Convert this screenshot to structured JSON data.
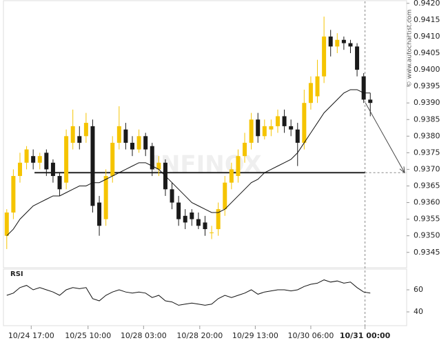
{
  "chart_data": {
    "type": "candlestick",
    "watermark": "INFINOX",
    "credit": "© www.autochartist.com",
    "up_color": "#f5c400",
    "down_color": "#1a1a1a",
    "ylim": [
      0.9341,
      0.9421
    ],
    "yticks": [
      {
        "value": 0.9345,
        "label": "0.9345"
      },
      {
        "value": 0.935,
        "label": "0.9350"
      },
      {
        "value": 0.9355,
        "label": "0.9355"
      },
      {
        "value": 0.936,
        "label": "0.9360"
      },
      {
        "value": 0.9365,
        "label": "0.9365"
      },
      {
        "value": 0.937,
        "label": "0.9370"
      },
      {
        "value": 0.9375,
        "label": "0.9375"
      },
      {
        "value": 0.938,
        "label": "0.9380"
      },
      {
        "value": 0.9385,
        "label": "0.9385"
      },
      {
        "value": 0.939,
        "label": "0.9390"
      },
      {
        "value": 0.9395,
        "label": "0.9395"
      },
      {
        "value": 0.94,
        "label": "0.9400"
      },
      {
        "value": 0.9405,
        "label": "0.9405"
      },
      {
        "value": 0.941,
        "label": "0.9410"
      },
      {
        "value": 0.9415,
        "label": "0.9415"
      },
      {
        "value": 0.942,
        "label": "0.9420"
      }
    ],
    "xlim": [
      -0.5,
      60.5
    ],
    "xticks": [
      {
        "value": 3.7,
        "label": "10/24 17:00"
      },
      {
        "value": 12.3,
        "label": "10/25 10:00"
      },
      {
        "value": 20.7,
        "label": "10/28 03:00"
      },
      {
        "value": 29.2,
        "label": "10/28 20:00"
      },
      {
        "value": 37.6,
        "label": "10/29 13:00"
      },
      {
        "value": 46,
        "label": "10/30 06:00"
      },
      {
        "value": 54.2,
        "label": "10/31 00:00"
      }
    ],
    "open": [
      0.935,
      0.9357,
      0.9368,
      0.9372,
      0.9374,
      0.9372,
      0.9375,
      0.9372,
      0.9368,
      0.9366,
      0.9378,
      0.938,
      0.938,
      0.9383,
      0.936,
      0.9355,
      0.9368,
      0.9378,
      0.9382,
      0.9378,
      0.9376,
      0.938,
      0.9377,
      0.937,
      0.9372,
      0.9364,
      0.936,
      0.9356,
      0.9357,
      0.9355,
      0.9354,
      0.9351,
      0.9352,
      0.9358,
      0.9366,
      0.9368,
      0.9374,
      0.9378,
      0.9385,
      0.938,
      0.9382,
      0.9383,
      0.9386,
      0.9383,
      0.9382,
      0.9378,
      0.939,
      0.9392,
      0.9398,
      0.941,
      0.9407,
      0.9409,
      0.9408,
      0.9407,
      0.9398,
      0.9391
    ],
    "high": [
      0.9358,
      0.937,
      0.9375,
      0.9377,
      0.9376,
      0.9375,
      0.9376,
      0.9373,
      0.9369,
      0.9382,
      0.9388,
      0.9383,
      0.9387,
      0.9385,
      0.9362,
      0.937,
      0.938,
      0.9389,
      0.9384,
      0.938,
      0.9382,
      0.9381,
      0.9378,
      0.9374,
      0.9373,
      0.9366,
      0.9362,
      0.9358,
      0.9358,
      0.9357,
      0.9356,
      0.9353,
      0.936,
      0.9368,
      0.9372,
      0.9376,
      0.9381,
      0.9387,
      0.9387,
      0.9385,
      0.9385,
      0.9388,
      0.9388,
      0.9385,
      0.9384,
      0.9394,
      0.9398,
      0.9403,
      0.9416,
      0.9412,
      0.9411,
      0.941,
      0.9409,
      0.9408,
      0.9399,
      0.9393
    ],
    "low": [
      0.9346,
      0.9355,
      0.9366,
      0.937,
      0.937,
      0.937,
      0.9368,
      0.9366,
      0.9362,
      0.9364,
      0.9376,
      0.9376,
      0.9378,
      0.9357,
      0.935,
      0.9353,
      0.9366,
      0.9376,
      0.9376,
      0.9374,
      0.9375,
      0.9374,
      0.9368,
      0.9368,
      0.9362,
      0.9358,
      0.9353,
      0.9352,
      0.9353,
      0.9352,
      0.935,
      0.9349,
      0.935,
      0.9356,
      0.9364,
      0.9366,
      0.9372,
      0.9376,
      0.9378,
      0.9379,
      0.938,
      0.9381,
      0.9381,
      0.938,
      0.9371,
      0.9376,
      0.9388,
      0.939,
      0.9396,
      0.9404,
      0.9405,
      0.9406,
      0.9405,
      0.9398,
      0.939,
      0.9386
    ],
    "close": [
      0.9357,
      0.9368,
      0.9372,
      0.9376,
      0.9372,
      0.9374,
      0.937,
      0.9368,
      0.9364,
      0.938,
      0.9383,
      0.9378,
      0.9384,
      0.9359,
      0.9353,
      0.9368,
      0.9378,
      0.9383,
      0.9378,
      0.9376,
      0.938,
      0.9376,
      0.937,
      0.9372,
      0.9364,
      0.936,
      0.9355,
      0.9354,
      0.9355,
      0.9353,
      0.9352,
      0.9351,
      0.9358,
      0.9366,
      0.937,
      0.9374,
      0.9378,
      0.9385,
      0.938,
      0.9383,
      0.9383,
      0.9386,
      0.9383,
      0.9382,
      0.9378,
      0.939,
      0.9396,
      0.9398,
      0.941,
      0.9407,
      0.9409,
      0.9408,
      0.9407,
      0.94,
      0.9391,
      0.939
    ],
    "moving_average": [
      0.935,
      0.9352,
      0.9355,
      0.9357,
      0.9359,
      0.936,
      0.9361,
      0.9362,
      0.9362,
      0.9363,
      0.9364,
      0.9365,
      0.9365,
      0.9366,
      0.9366,
      0.9367,
      0.9368,
      0.9369,
      0.937,
      0.9371,
      0.9372,
      0.9372,
      0.9371,
      0.937,
      0.9368,
      0.9366,
      0.9364,
      0.9362,
      0.936,
      0.9359,
      0.9358,
      0.9357,
      0.9357,
      0.9358,
      0.936,
      0.9362,
      0.9364,
      0.9366,
      0.9367,
      0.9369,
      0.937,
      0.9371,
      0.9372,
      0.9373,
      0.9375,
      0.9378,
      0.9381,
      0.9384,
      0.9387,
      0.9389,
      0.9391,
      0.9393,
      0.9394,
      0.9394,
      0.9393,
      0.9393
    ],
    "support_level": 0.9369,
    "rsi": {
      "label": "RSI",
      "ylim": [
        30,
        70
      ],
      "yticks": [
        40,
        60
      ],
      "values": [
        55,
        57,
        62,
        64,
        60,
        62,
        60,
        58,
        55,
        60,
        62,
        61,
        62,
        52,
        50,
        55,
        58,
        60,
        58,
        57,
        58,
        57,
        53,
        55,
        50,
        49,
        46,
        47,
        48,
        47,
        46,
        47,
        52,
        55,
        53,
        55,
        57,
        60,
        56,
        58,
        59,
        60,
        60,
        59,
        60,
        63,
        65,
        66,
        69,
        67,
        68,
        66,
        67,
        62,
        58,
        57
      ]
    }
  }
}
